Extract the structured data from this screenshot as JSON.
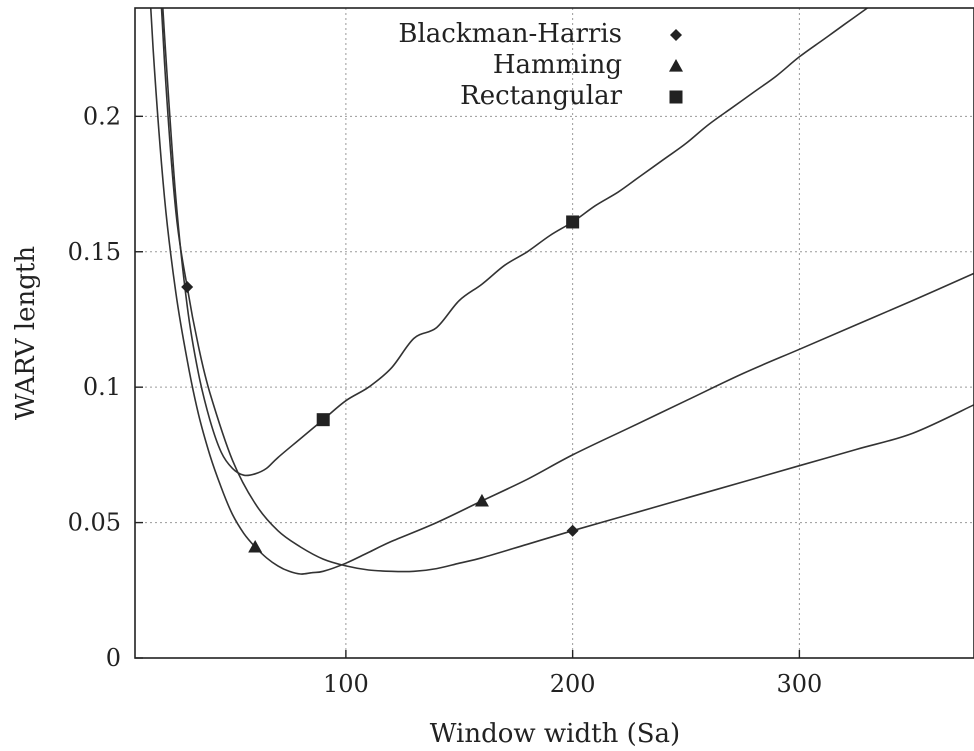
{
  "chart_data": {
    "type": "line",
    "xlabel": "Window width (Sa)",
    "ylabel": "WARV length",
    "xlim": [
      7,
      377
    ],
    "ylim": [
      0,
      0.24
    ],
    "x_ticks": [
      100,
      200,
      300
    ],
    "y_ticks": [
      0,
      0.05,
      0.1,
      0.15,
      0.2
    ],
    "x_tick_labels": [
      "100",
      "200",
      "300"
    ],
    "y_tick_labels": [
      "0",
      "0.05",
      "0.1",
      "0.15",
      "0.2"
    ],
    "grid": true,
    "legend_position": "top-center",
    "series": [
      {
        "name": "Blackman-Harris",
        "marker": "diamond",
        "x": [
          15,
          20,
          25,
          30,
          35,
          40,
          50,
          60,
          70,
          80,
          90,
          100,
          110,
          120,
          130,
          140,
          150,
          160,
          180,
          200,
          225,
          250,
          275,
          300,
          325,
          350,
          377
        ],
        "y": [
          0.3,
          0.22,
          0.165,
          0.137,
          0.115,
          0.098,
          0.073,
          0.057,
          0.047,
          0.041,
          0.0365,
          0.034,
          0.0325,
          0.032,
          0.032,
          0.033,
          0.035,
          0.037,
          0.042,
          0.047,
          0.053,
          0.059,
          0.065,
          0.071,
          0.077,
          0.083,
          0.0935
        ],
        "markers_x": [
          30,
          200
        ],
        "markers_y": [
          0.137,
          0.047
        ]
      },
      {
        "name": "Hamming",
        "marker": "triangle",
        "x": [
          10,
          15,
          20,
          25,
          30,
          35,
          40,
          45,
          50,
          55,
          60,
          65,
          70,
          75,
          80,
          85,
          90,
          100,
          110,
          120,
          140,
          160,
          180,
          200,
          225,
          250,
          275,
          300,
          325,
          350,
          377
        ],
        "y": [
          0.3,
          0.225,
          0.17,
          0.135,
          0.11,
          0.09,
          0.075,
          0.063,
          0.053,
          0.046,
          0.041,
          0.037,
          0.034,
          0.032,
          0.031,
          0.0315,
          0.032,
          0.035,
          0.039,
          0.043,
          0.05,
          0.058,
          0.066,
          0.075,
          0.085,
          0.095,
          0.105,
          0.114,
          0.123,
          0.132,
          0.142
        ],
        "markers_x": [
          60,
          160
        ],
        "markers_y": [
          0.041,
          0.058
        ]
      },
      {
        "name": "Rectangular",
        "marker": "square",
        "x": [
          15,
          20,
          25,
          30,
          35,
          40,
          45,
          50,
          55,
          60,
          65,
          70,
          80,
          90,
          100,
          110,
          120,
          130,
          140,
          150,
          160,
          170,
          180,
          190,
          200,
          210,
          220,
          230,
          240,
          250,
          260,
          270,
          280,
          290,
          300,
          310,
          320,
          330
        ],
        "y": [
          0.3,
          0.23,
          0.17,
          0.13,
          0.105,
          0.088,
          0.076,
          0.07,
          0.0675,
          0.068,
          0.07,
          0.074,
          0.081,
          0.088,
          0.095,
          0.1,
          0.107,
          0.118,
          0.122,
          0.132,
          0.138,
          0.145,
          0.15,
          0.156,
          0.161,
          0.167,
          0.172,
          0.178,
          0.184,
          0.19,
          0.197,
          0.203,
          0.209,
          0.215,
          0.222,
          0.228,
          0.234,
          0.24
        ],
        "markers_x": [
          90,
          200
        ],
        "markers_y": [
          0.088,
          0.161
        ]
      }
    ]
  }
}
